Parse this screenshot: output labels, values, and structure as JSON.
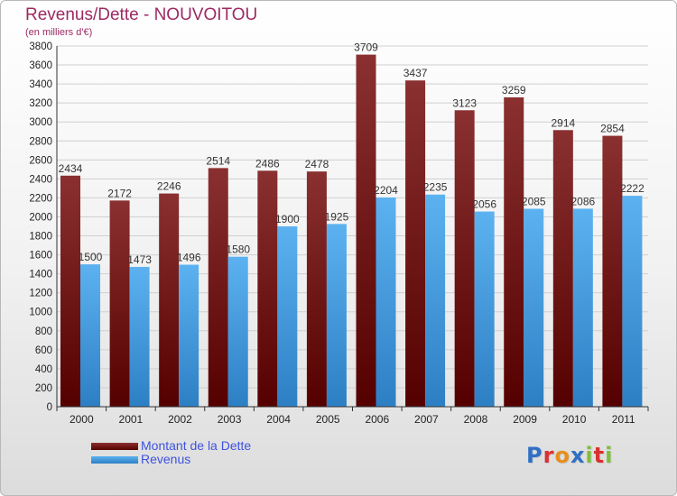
{
  "title": "Revenus/Dette - NOUVOITOU",
  "subtitle": "(en milliers d'€)",
  "logo": {
    "letters": [
      "P",
      "r",
      "o",
      "x",
      "i",
      "t",
      "i"
    ],
    "colors": [
      "#2f6fc4",
      "#d8312e",
      "#e78f1c",
      "#2f6fc4",
      "#7fbf3a",
      "#d8312e",
      "#7fbf3a"
    ]
  },
  "chart_data": {
    "type": "bar",
    "categories": [
      "2000",
      "2001",
      "2002",
      "2003",
      "2004",
      "2005",
      "2006",
      "2007",
      "2008",
      "2009",
      "2010",
      "2011"
    ],
    "series": [
      {
        "name": "Montant de la Dette",
        "color": "#7a1c1c",
        "values": [
          2434,
          2172,
          2246,
          2514,
          2486,
          2478,
          3709,
          3437,
          3123,
          3259,
          2914,
          2854
        ]
      },
      {
        "name": "Revenus",
        "color": "#4aa3e8",
        "values": [
          1500,
          1473,
          1496,
          1580,
          1900,
          1925,
          2204,
          2235,
          2056,
          2085,
          2086,
          2222
        ]
      }
    ],
    "ylim": [
      0,
      3800
    ],
    "ytick_step": 200,
    "grid": true,
    "legend": "bottom-left"
  }
}
